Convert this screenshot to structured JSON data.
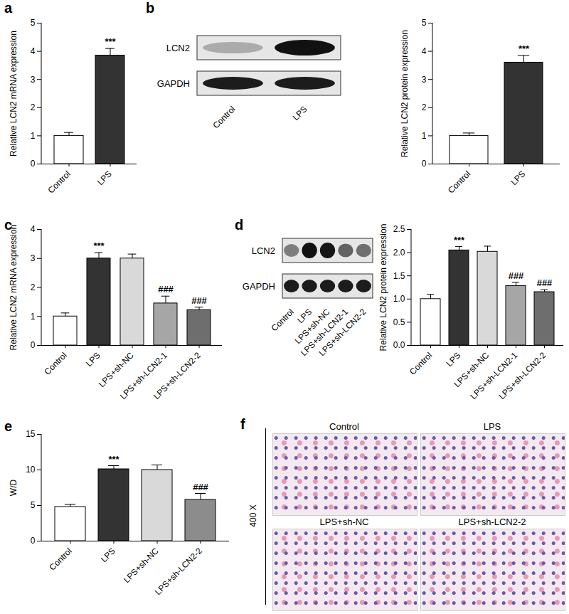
{
  "chart_data": [
    {
      "type": "bar",
      "panel": "a",
      "ylabel": "Relative LCN2 mRNA expression",
      "categories": [
        "Control",
        "LPS"
      ],
      "values": [
        1.0,
        3.85
      ],
      "errors": [
        0.12,
        0.25
      ],
      "annotations": [
        null,
        "***"
      ],
      "colors": [
        "#ffffff",
        "#333333"
      ],
      "ylim": [
        0,
        5
      ],
      "yticks": [
        0,
        1,
        2,
        3,
        4,
        5
      ]
    },
    {
      "type": "bar",
      "panel": "b",
      "ylabel": "Relative LCN2 protein expression",
      "blot": {
        "rows": [
          "LCN2",
          "GAPDH"
        ],
        "lanes": [
          "Control",
          "LPS"
        ]
      },
      "categories": [
        "Control",
        "LPS"
      ],
      "values": [
        1.0,
        3.6
      ],
      "errors": [
        0.1,
        0.25
      ],
      "annotations": [
        null,
        "***"
      ],
      "colors": [
        "#ffffff",
        "#333333"
      ],
      "ylim": [
        0,
        5
      ],
      "yticks": [
        0,
        1,
        2,
        3,
        4,
        5
      ]
    },
    {
      "type": "bar",
      "panel": "c",
      "ylabel": "Relative LCN2 mRNA expression",
      "categories": [
        "Control",
        "LPS",
        "LPS+sh-NC",
        "LPS+sh-LCN2-1",
        "LPS+sh-LCN2-2"
      ],
      "values": [
        1.0,
        3.0,
        3.0,
        1.45,
        1.22
      ],
      "errors": [
        0.12,
        0.2,
        0.15,
        0.25,
        0.1
      ],
      "annotations": [
        null,
        "***",
        null,
        "###",
        "###"
      ],
      "colors": [
        "#ffffff",
        "#333333",
        "#d9d9d9",
        "#a6a6a6",
        "#6e6e6e"
      ],
      "ylim": [
        0,
        4
      ],
      "yticks": [
        0,
        1,
        2,
        3,
        4
      ]
    },
    {
      "type": "bar",
      "panel": "d",
      "ylabel": "Relative LCN2 protein expression",
      "blot": {
        "rows": [
          "LCN2",
          "GAPDH"
        ],
        "lanes": [
          "Control",
          "LPS",
          "LPS+sh-NC",
          "LPS+sh-LCN2-1",
          "LPS+sh-LCN2-2"
        ]
      },
      "categories": [
        "Control",
        "LPS",
        "LPS+sh-NC",
        "LPS+sh-LCN2-1",
        "LPS+sh-LCN2-2"
      ],
      "values": [
        1.0,
        2.05,
        2.02,
        1.28,
        1.15
      ],
      "errors": [
        0.1,
        0.08,
        0.12,
        0.08,
        0.05
      ],
      "annotations": [
        null,
        "***",
        null,
        "###",
        "###"
      ],
      "colors": [
        "#ffffff",
        "#333333",
        "#d9d9d9",
        "#a6a6a6",
        "#6e6e6e"
      ],
      "ylim": [
        0,
        2.5
      ],
      "yticks": [
        {
          "value": 0,
          "label": "0.0"
        },
        0.5,
        {
          "value": 1,
          "label": "1.0"
        },
        1.5,
        {
          "value": 2,
          "label": "2.0"
        },
        2.5
      ]
    },
    {
      "type": "bar",
      "panel": "e",
      "ylabel": "W/D",
      "categories": [
        "Control",
        "LPS",
        "LPS+sh-NC",
        "LPS+sh-LCN2-2"
      ],
      "values": [
        4.8,
        10.1,
        10.0,
        5.8
      ],
      "errors": [
        0.35,
        0.5,
        0.7,
        0.9
      ],
      "annotations": [
        null,
        "***",
        null,
        "###"
      ],
      "colors": [
        "#ffffff",
        "#333333",
        "#d9d9d9",
        "#8c8c8c"
      ],
      "ylim": [
        0,
        15
      ],
      "yticks": [
        0,
        5,
        10,
        15
      ]
    },
    {
      "type": "image",
      "panel": "f",
      "scale_label": "400 X",
      "images": [
        "Control",
        "LPS",
        "LPS+sh-NC",
        "LPS+sh-LCN2-2"
      ]
    }
  ]
}
